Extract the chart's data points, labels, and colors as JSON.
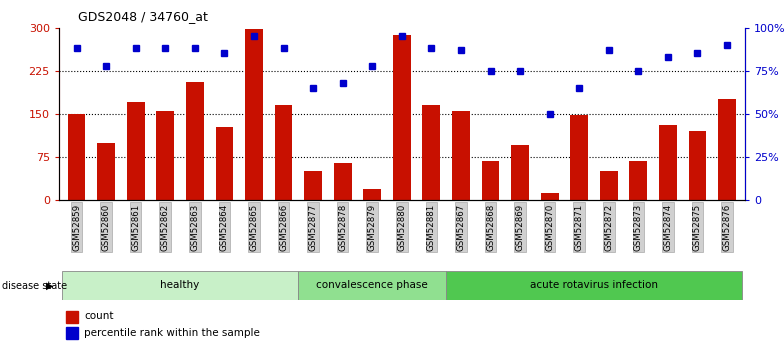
{
  "title": "GDS2048 / 34760_at",
  "samples": [
    "GSM52859",
    "GSM52860",
    "GSM52861",
    "GSM52862",
    "GSM52863",
    "GSM52864",
    "GSM52865",
    "GSM52866",
    "GSM52877",
    "GSM52878",
    "GSM52879",
    "GSM52880",
    "GSM52881",
    "GSM52867",
    "GSM52868",
    "GSM52869",
    "GSM52870",
    "GSM52871",
    "GSM52872",
    "GSM52873",
    "GSM52874",
    "GSM52875",
    "GSM52876"
  ],
  "counts": [
    150,
    100,
    170,
    155,
    205,
    128,
    297,
    165,
    50,
    65,
    20,
    287,
    165,
    155,
    68,
    95,
    13,
    148,
    50,
    68,
    130,
    120,
    175
  ],
  "percentiles": [
    88,
    78,
    88,
    88,
    88,
    85,
    95,
    88,
    65,
    68,
    78,
    95,
    88,
    87,
    75,
    75,
    50,
    65,
    87,
    75,
    83,
    85,
    90
  ],
  "groups": [
    {
      "label": "healthy",
      "start": 0,
      "end": 8,
      "color": "#c8f0c8"
    },
    {
      "label": "convalescence phase",
      "start": 8,
      "end": 13,
      "color": "#90e090"
    },
    {
      "label": "acute rotavirus infection",
      "start": 13,
      "end": 23,
      "color": "#50c850"
    }
  ],
  "bar_color": "#c81000",
  "dot_color": "#0000cc",
  "ylim_left": [
    0,
    300
  ],
  "ylim_right": [
    0,
    100
  ],
  "yticks_left": [
    0,
    75,
    150,
    225,
    300
  ],
  "ytick_labels_left": [
    "0",
    "75",
    "150",
    "225",
    "300"
  ],
  "yticks_right": [
    0,
    25,
    50,
    75,
    100
  ],
  "ytick_labels_right": [
    "0",
    "25%",
    "50%",
    "75%",
    "100%"
  ],
  "grid_values": [
    75,
    150,
    225
  ],
  "bg_color": "#ffffff"
}
